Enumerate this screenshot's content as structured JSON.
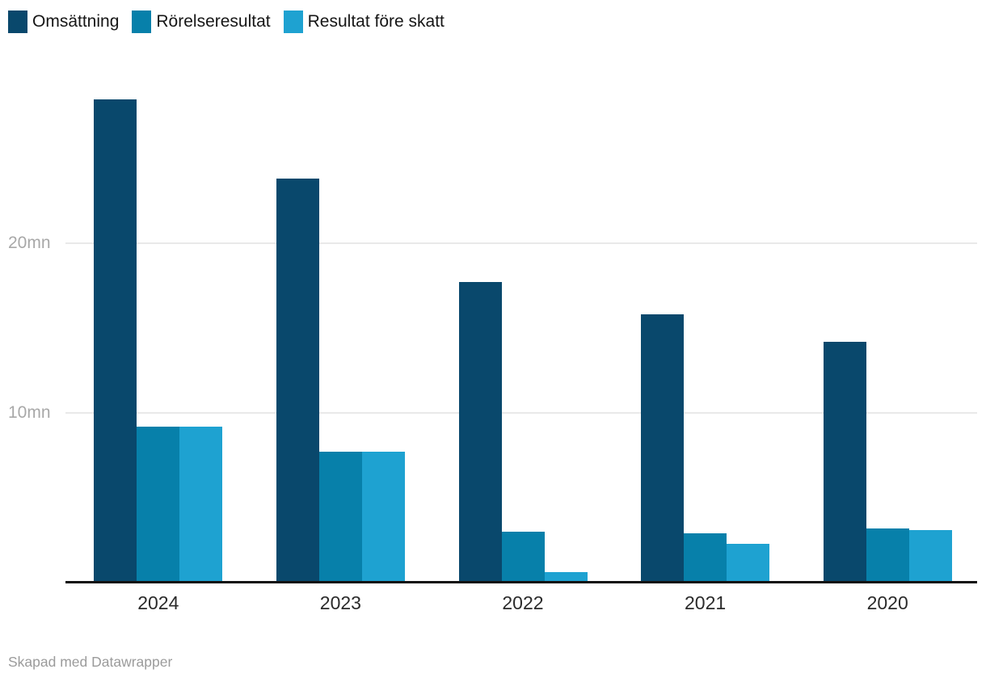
{
  "chart_data": {
    "type": "bar",
    "categories": [
      "2024",
      "2023",
      "2022",
      "2021",
      "2020"
    ],
    "series": [
      {
        "name": "Omsättning",
        "color": "#09486C",
        "values": [
          28.5,
          23.8,
          17.7,
          15.8,
          14.2
        ]
      },
      {
        "name": "Rörelseresultat",
        "color": "#0780AA",
        "values": [
          9.2,
          7.7,
          3.0,
          2.9,
          3.2
        ]
      },
      {
        "name": "Resultat före skatt",
        "color": "#1EA2D1",
        "values": [
          9.2,
          7.7,
          0.6,
          2.3,
          3.1
        ]
      }
    ],
    "yticks": [
      {
        "value": 10,
        "label": "10mn"
      },
      {
        "value": 20,
        "label": "20mn"
      }
    ],
    "unit": "mn",
    "ylim": [
      0,
      29
    ],
    "grid": true,
    "legend_position": "top-left",
    "title": "",
    "xlabel": "",
    "ylabel": ""
  },
  "footer": {
    "credit": "Skapad med Datawrapper"
  }
}
